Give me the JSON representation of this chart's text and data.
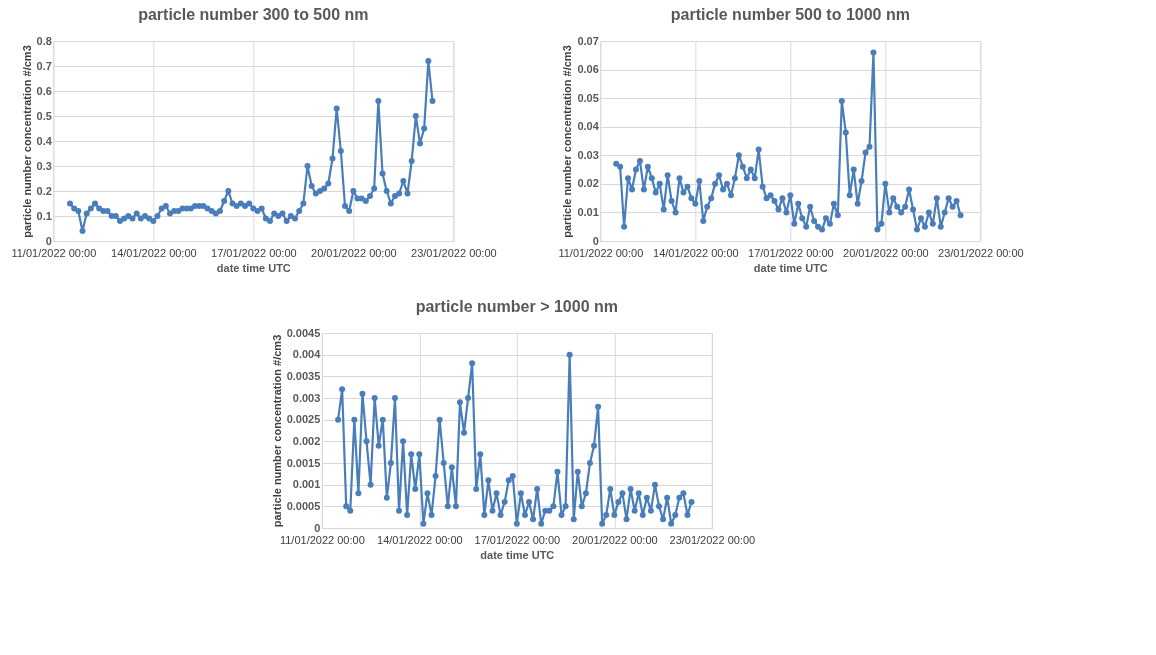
{
  "chart_data": [
    {
      "type": "line",
      "title": "particle number 300 to 500 nm",
      "xlabel": "date time UTC",
      "ylabel": "particle number concentration #/cm3",
      "color": "#4a7ebb",
      "marker": "circle",
      "grid": true,
      "x": [
        "2022-01-11T12:00",
        "2022-01-11T15:00",
        "2022-01-11T18:00",
        "2022-01-11T21:00",
        "2022-01-12T00:00",
        "2022-01-12T03:00",
        "2022-01-12T06:00",
        "2022-01-12T09:00",
        "2022-01-12T12:00",
        "2022-01-12T15:00",
        "2022-01-12T18:00",
        "2022-01-12T21:00",
        "2022-01-13T00:00",
        "2022-01-13T03:00",
        "2022-01-13T06:00",
        "2022-01-13T09:00",
        "2022-01-13T12:00",
        "2022-01-13T15:00",
        "2022-01-13T18:00",
        "2022-01-13T21:00",
        "2022-01-14T00:00",
        "2022-01-14T03:00",
        "2022-01-14T06:00",
        "2022-01-14T09:00",
        "2022-01-14T12:00",
        "2022-01-14T15:00",
        "2022-01-14T18:00",
        "2022-01-14T21:00",
        "2022-01-15T00:00",
        "2022-01-15T03:00",
        "2022-01-15T06:00",
        "2022-01-15T09:00",
        "2022-01-15T12:00",
        "2022-01-15T15:00",
        "2022-01-15T18:00",
        "2022-01-15T21:00",
        "2022-01-16T00:00",
        "2022-01-16T03:00",
        "2022-01-16T06:00",
        "2022-01-16T09:00",
        "2022-01-16T12:00",
        "2022-01-16T15:00",
        "2022-01-16T18:00",
        "2022-01-16T21:00",
        "2022-01-17T00:00",
        "2022-01-17T03:00",
        "2022-01-17T06:00",
        "2022-01-17T09:00",
        "2022-01-17T12:00",
        "2022-01-17T15:00",
        "2022-01-17T18:00",
        "2022-01-17T21:00",
        "2022-01-18T00:00",
        "2022-01-18T03:00",
        "2022-01-18T06:00",
        "2022-01-18T09:00",
        "2022-01-18T12:00",
        "2022-01-18T15:00",
        "2022-01-18T18:00",
        "2022-01-18T21:00",
        "2022-01-19T00:00",
        "2022-01-19T03:00",
        "2022-01-19T06:00",
        "2022-01-19T09:00",
        "2022-01-19T12:00",
        "2022-01-19T15:00",
        "2022-01-19T18:00",
        "2022-01-19T21:00",
        "2022-01-20T00:00",
        "2022-01-20T03:00",
        "2022-01-20T06:00",
        "2022-01-20T09:00",
        "2022-01-20T12:00",
        "2022-01-20T15:00",
        "2022-01-20T18:00",
        "2022-01-20T21:00",
        "2022-01-21T00:00",
        "2022-01-21T03:00",
        "2022-01-21T06:00",
        "2022-01-21T09:00",
        "2022-01-21T12:00",
        "2022-01-21T15:00",
        "2022-01-21T18:00",
        "2022-01-21T21:00",
        "2022-01-22T00:00",
        "2022-01-22T03:00",
        "2022-01-22T06:00",
        "2022-01-22T09:00"
      ],
      "values": [
        0.15,
        0.13,
        0.12,
        0.04,
        0.11,
        0.13,
        0.15,
        0.13,
        0.12,
        0.12,
        0.1,
        0.1,
        0.08,
        0.09,
        0.1,
        0.09,
        0.11,
        0.09,
        0.1,
        0.09,
        0.08,
        0.1,
        0.13,
        0.14,
        0.11,
        0.12,
        0.12,
        0.13,
        0.13,
        0.13,
        0.14,
        0.14,
        0.14,
        0.13,
        0.12,
        0.11,
        0.12,
        0.16,
        0.2,
        0.15,
        0.14,
        0.15,
        0.14,
        0.15,
        0.13,
        0.12,
        0.13,
        0.09,
        0.08,
        0.11,
        0.1,
        0.11,
        0.08,
        0.1,
        0.09,
        0.12,
        0.15,
        0.3,
        0.22,
        0.19,
        0.2,
        0.21,
        0.23,
        0.33,
        0.53,
        0.36,
        0.14,
        0.12,
        0.2,
        0.17,
        0.17,
        0.16,
        0.18,
        0.21,
        0.56,
        0.27,
        0.2,
        0.15,
        0.18,
        0.19,
        0.24,
        0.19,
        0.32,
        0.5,
        0.39,
        0.45,
        0.72,
        0.56
      ],
      "xlim": [
        "2022-01-11",
        "2022-01-23"
      ],
      "xticks": [
        {
          "value": "2022-01-11",
          "label": "11/01/2022 00:00"
        },
        {
          "value": "2022-01-14",
          "label": "14/01/2022 00:00"
        },
        {
          "value": "2022-01-17",
          "label": "17/01/2022 00:00"
        },
        {
          "value": "2022-01-20",
          "label": "20/01/2022 00:00"
        },
        {
          "value": "2022-01-23",
          "label": "23/01/2022 00:00"
        }
      ],
      "ylim": [
        0,
        0.8
      ],
      "yticks": [
        0,
        0.1,
        0.2,
        0.3,
        0.4,
        0.5,
        0.6,
        0.7,
        0.8
      ]
    },
    {
      "type": "line",
      "title": "particle number 500 to 1000 nm",
      "xlabel": "date time UTC",
      "ylabel": "particle number concentration #/cm3",
      "color": "#4a7ebb",
      "marker": "circle",
      "grid": true,
      "x": [
        "2022-01-11T12:00",
        "2022-01-11T15:00",
        "2022-01-11T18:00",
        "2022-01-11T21:00",
        "2022-01-12T00:00",
        "2022-01-12T03:00",
        "2022-01-12T06:00",
        "2022-01-12T09:00",
        "2022-01-12T12:00",
        "2022-01-12T15:00",
        "2022-01-12T18:00",
        "2022-01-12T21:00",
        "2022-01-13T00:00",
        "2022-01-13T03:00",
        "2022-01-13T06:00",
        "2022-01-13T09:00",
        "2022-01-13T12:00",
        "2022-01-13T15:00",
        "2022-01-13T18:00",
        "2022-01-13T21:00",
        "2022-01-14T00:00",
        "2022-01-14T03:00",
        "2022-01-14T06:00",
        "2022-01-14T09:00",
        "2022-01-14T12:00",
        "2022-01-14T15:00",
        "2022-01-14T18:00",
        "2022-01-14T21:00",
        "2022-01-15T00:00",
        "2022-01-15T03:00",
        "2022-01-15T06:00",
        "2022-01-15T09:00",
        "2022-01-15T12:00",
        "2022-01-15T15:00",
        "2022-01-15T18:00",
        "2022-01-15T21:00",
        "2022-01-16T00:00",
        "2022-01-16T03:00",
        "2022-01-16T06:00",
        "2022-01-16T09:00",
        "2022-01-16T12:00",
        "2022-01-16T15:00",
        "2022-01-16T18:00",
        "2022-01-16T21:00",
        "2022-01-17T00:00",
        "2022-01-17T03:00",
        "2022-01-17T06:00",
        "2022-01-17T09:00",
        "2022-01-17T12:00",
        "2022-01-17T15:00",
        "2022-01-17T18:00",
        "2022-01-17T21:00",
        "2022-01-18T00:00",
        "2022-01-18T03:00",
        "2022-01-18T06:00",
        "2022-01-18T09:00",
        "2022-01-18T12:00",
        "2022-01-18T15:00",
        "2022-01-18T18:00",
        "2022-01-18T21:00",
        "2022-01-19T00:00",
        "2022-01-19T03:00",
        "2022-01-19T06:00",
        "2022-01-19T09:00",
        "2022-01-19T12:00",
        "2022-01-19T15:00",
        "2022-01-19T18:00",
        "2022-01-19T21:00",
        "2022-01-20T00:00",
        "2022-01-20T03:00",
        "2022-01-20T06:00",
        "2022-01-20T09:00",
        "2022-01-20T12:00",
        "2022-01-20T15:00",
        "2022-01-20T18:00",
        "2022-01-20T21:00",
        "2022-01-21T00:00",
        "2022-01-21T03:00",
        "2022-01-21T06:00",
        "2022-01-21T09:00",
        "2022-01-21T12:00",
        "2022-01-21T15:00",
        "2022-01-21T18:00",
        "2022-01-21T21:00",
        "2022-01-22T00:00",
        "2022-01-22T03:00",
        "2022-01-22T06:00",
        "2022-01-22T09:00"
      ],
      "values": [
        0.027,
        0.026,
        0.005,
        0.022,
        0.018,
        0.025,
        0.028,
        0.018,
        0.026,
        0.022,
        0.017,
        0.02,
        0.011,
        0.023,
        0.014,
        0.01,
        0.022,
        0.017,
        0.019,
        0.015,
        0.013,
        0.021,
        0.007,
        0.012,
        0.015,
        0.02,
        0.023,
        0.018,
        0.02,
        0.016,
        0.022,
        0.03,
        0.026,
        0.022,
        0.025,
        0.022,
        0.032,
        0.019,
        0.015,
        0.016,
        0.014,
        0.011,
        0.015,
        0.01,
        0.016,
        0.006,
        0.013,
        0.008,
        0.005,
        0.012,
        0.007,
        0.005,
        0.004,
        0.008,
        0.006,
        0.013,
        0.009,
        0.049,
        0.038,
        0.016,
        0.025,
        0.013,
        0.021,
        0.031,
        0.033,
        0.066,
        0.004,
        0.006,
        0.02,
        0.01,
        0.015,
        0.012,
        0.01,
        0.012,
        0.018,
        0.011,
        0.004,
        0.008,
        0.005,
        0.01,
        0.006,
        0.015,
        0.005,
        0.01,
        0.015,
        0.012,
        0.014,
        0.009
      ],
      "xlim": [
        "2022-01-11",
        "2022-01-23"
      ],
      "xticks": [
        {
          "value": "2022-01-11",
          "label": "11/01/2022 00:00"
        },
        {
          "value": "2022-01-14",
          "label": "14/01/2022 00:00"
        },
        {
          "value": "2022-01-17",
          "label": "17/01/2022 00:00"
        },
        {
          "value": "2022-01-20",
          "label": "20/01/2022 00:00"
        },
        {
          "value": "2022-01-23",
          "label": "23/01/2022 00:00"
        }
      ],
      "ylim": [
        0,
        0.07
      ],
      "yticks": [
        0,
        0.01,
        0.02,
        0.03,
        0.04,
        0.05,
        0.06,
        0.07
      ]
    },
    {
      "type": "line",
      "title": "particle number >  1000 nm",
      "xlabel": "date time UTC",
      "ylabel": "particle number concentration #/cm3",
      "color": "#4a7ebb",
      "marker": "circle",
      "grid": true,
      "x": [
        "2022-01-11T12:00",
        "2022-01-11T15:00",
        "2022-01-11T18:00",
        "2022-01-11T21:00",
        "2022-01-12T00:00",
        "2022-01-12T03:00",
        "2022-01-12T06:00",
        "2022-01-12T09:00",
        "2022-01-12T12:00",
        "2022-01-12T15:00",
        "2022-01-12T18:00",
        "2022-01-12T21:00",
        "2022-01-13T00:00",
        "2022-01-13T03:00",
        "2022-01-13T06:00",
        "2022-01-13T09:00",
        "2022-01-13T12:00",
        "2022-01-13T15:00",
        "2022-01-13T18:00",
        "2022-01-13T21:00",
        "2022-01-14T00:00",
        "2022-01-14T03:00",
        "2022-01-14T06:00",
        "2022-01-14T09:00",
        "2022-01-14T12:00",
        "2022-01-14T15:00",
        "2022-01-14T18:00",
        "2022-01-14T21:00",
        "2022-01-15T00:00",
        "2022-01-15T03:00",
        "2022-01-15T06:00",
        "2022-01-15T09:00",
        "2022-01-15T12:00",
        "2022-01-15T15:00",
        "2022-01-15T18:00",
        "2022-01-15T21:00",
        "2022-01-16T00:00",
        "2022-01-16T03:00",
        "2022-01-16T06:00",
        "2022-01-16T09:00",
        "2022-01-16T12:00",
        "2022-01-16T15:00",
        "2022-01-16T18:00",
        "2022-01-16T21:00",
        "2022-01-17T00:00",
        "2022-01-17T03:00",
        "2022-01-17T06:00",
        "2022-01-17T09:00",
        "2022-01-17T12:00",
        "2022-01-17T15:00",
        "2022-01-17T18:00",
        "2022-01-17T21:00",
        "2022-01-18T00:00",
        "2022-01-18T03:00",
        "2022-01-18T06:00",
        "2022-01-18T09:00",
        "2022-01-18T12:00",
        "2022-01-18T15:00",
        "2022-01-18T18:00",
        "2022-01-18T21:00",
        "2022-01-19T00:00",
        "2022-01-19T03:00",
        "2022-01-19T06:00",
        "2022-01-19T09:00",
        "2022-01-19T12:00",
        "2022-01-19T15:00",
        "2022-01-19T18:00",
        "2022-01-19T21:00",
        "2022-01-20T00:00",
        "2022-01-20T03:00",
        "2022-01-20T06:00",
        "2022-01-20T09:00",
        "2022-01-20T12:00",
        "2022-01-20T15:00",
        "2022-01-20T18:00",
        "2022-01-20T21:00",
        "2022-01-21T00:00",
        "2022-01-21T03:00",
        "2022-01-21T06:00",
        "2022-01-21T09:00",
        "2022-01-21T12:00",
        "2022-01-21T15:00",
        "2022-01-21T18:00",
        "2022-01-21T21:00",
        "2022-01-22T00:00",
        "2022-01-22T03:00",
        "2022-01-22T06:00",
        "2022-01-22T09:00"
      ],
      "values": [
        0.0025,
        0.0032,
        0.0005,
        0.0004,
        0.0025,
        0.0008,
        0.0031,
        0.002,
        0.001,
        0.003,
        0.0019,
        0.0025,
        0.0007,
        0.0015,
        0.003,
        0.0004,
        0.002,
        0.0003,
        0.0017,
        0.0009,
        0.0017,
        0.0001,
        0.0008,
        0.0003,
        0.0012,
        0.0025,
        0.0015,
        0.0005,
        0.0014,
        0.0005,
        0.0029,
        0.0022,
        0.003,
        0.0038,
        0.0009,
        0.0017,
        0.0003,
        0.0011,
        0.0004,
        0.0008,
        0.0003,
        0.0006,
        0.0011,
        0.0012,
        0.0001,
        0.0008,
        0.0003,
        0.0006,
        0.0002,
        0.0009,
        0.0001,
        0.0004,
        0.0004,
        0.0005,
        0.0013,
        0.0003,
        0.0005,
        0.004,
        0.0002,
        0.0013,
        0.0005,
        0.0008,
        0.0015,
        0.0019,
        0.0028,
        0.0001,
        0.0003,
        0.0009,
        0.0003,
        0.0006,
        0.0008,
        0.0002,
        0.0009,
        0.0004,
        0.0008,
        0.0003,
        0.0007,
        0.0004,
        0.001,
        0.0005,
        0.0002,
        0.0007,
        0.0001,
        0.0003,
        0.0007,
        0.0008,
        0.0003,
        0.0006
      ],
      "xlim": [
        "2022-01-11",
        "2022-01-23"
      ],
      "xticks": [
        {
          "value": "2022-01-11",
          "label": "11/01/2022 00:00"
        },
        {
          "value": "2022-01-14",
          "label": "14/01/2022 00:00"
        },
        {
          "value": "2022-01-17",
          "label": "17/01/2022 00:00"
        },
        {
          "value": "2022-01-20",
          "label": "20/01/2022 00:00"
        },
        {
          "value": "2022-01-23",
          "label": "23/01/2022 00:00"
        }
      ],
      "ylim": [
        0,
        0.0045
      ],
      "yticks": [
        0,
        0.0005,
        0.001,
        0.0015,
        0.002,
        0.0025,
        0.003,
        0.0035,
        0.004,
        0.0045
      ]
    }
  ]
}
